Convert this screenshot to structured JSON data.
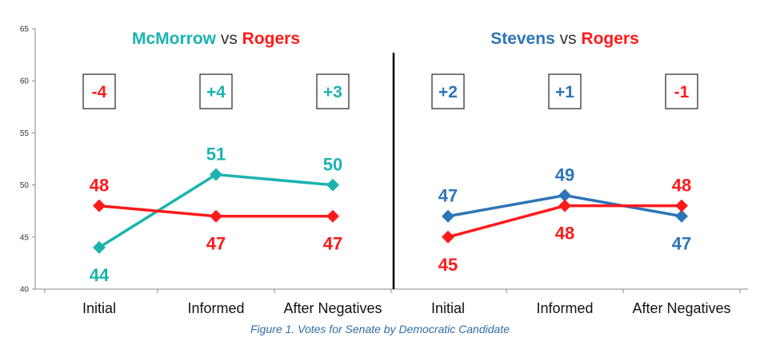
{
  "caption": "Figure 1. Votes for Senate by Democratic Candidate",
  "colors": {
    "teal": "#1bb3b0",
    "red": "#ff1a1a",
    "blue": "#2e75b6",
    "gray": "#333333"
  },
  "chart_data": {
    "type": "line",
    "ylim": [
      40,
      65
    ],
    "yticks": [
      40,
      45,
      50,
      55,
      60,
      65
    ],
    "grid": false,
    "panels": [
      {
        "title_parts": [
          {
            "text": "McMorrow",
            "color": "#1bb3b0"
          },
          {
            "text": " vs ",
            "color": "#333333",
            "plain": true
          },
          {
            "text": "Rogers",
            "color": "#ff1a1a"
          }
        ],
        "categories": [
          "Initial",
          "Informed",
          "After Negatives"
        ],
        "series": [
          {
            "values": [
              44,
              51,
              50
            ],
            "color": "#1bb3b0",
            "labels": [
              "44",
              "51",
              "50"
            ],
            "label_pos": [
              "below",
              "above",
              "above"
            ]
          },
          {
            "values": [
              48,
              47,
              47
            ],
            "color": "#ff1a1a",
            "labels": [
              "48",
              "47",
              "47"
            ],
            "label_pos": [
              "above",
              "below",
              "below"
            ]
          }
        ],
        "differences": [
          {
            "text": "-4",
            "color": "#ff1a1a"
          },
          {
            "text": "+4",
            "color": "#1bb3b0"
          },
          {
            "text": "+3",
            "color": "#1bb3b0"
          }
        ]
      },
      {
        "title_parts": [
          {
            "text": "Stevens",
            "color": "#2e75b6"
          },
          {
            "text": " vs ",
            "color": "#333333",
            "plain": true
          },
          {
            "text": "Rogers",
            "color": "#ff1a1a"
          }
        ],
        "categories": [
          "Initial",
          "Informed",
          "After Negatives"
        ],
        "series": [
          {
            "values": [
              47,
              49,
              47
            ],
            "color": "#2e75b6",
            "labels": [
              "47",
              "49",
              "47"
            ],
            "label_pos": [
              "above",
              "above",
              "below"
            ]
          },
          {
            "values": [
              45,
              48,
              48
            ],
            "color": "#ff1a1a",
            "labels": [
              "45",
              "48",
              "48"
            ],
            "label_pos": [
              "below",
              "below",
              "above"
            ]
          }
        ],
        "differences": [
          {
            "text": "+2",
            "color": "#2e75b6"
          },
          {
            "text": "+1",
            "color": "#2e75b6"
          },
          {
            "text": "-1",
            "color": "#ff1a1a"
          }
        ]
      }
    ]
  }
}
